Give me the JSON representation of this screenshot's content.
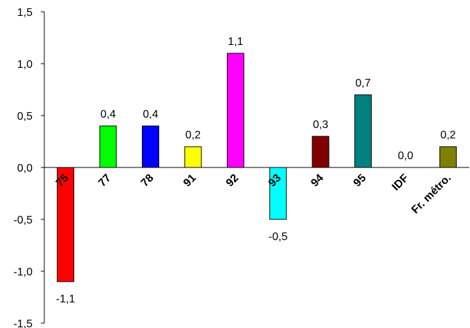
{
  "chart_data": {
    "type": "bar",
    "categories": [
      "75",
      "77",
      "78",
      "91",
      "92",
      "93",
      "94",
      "95",
      "IDF",
      "Fr. métro."
    ],
    "values": [
      -1.1,
      0.4,
      0.4,
      0.2,
      1.1,
      -0.5,
      0.3,
      0.7,
      0.0,
      0.2
    ],
    "value_labels": [
      "-1,1",
      "0,4",
      "0,4",
      "0,2",
      "1,1",
      "-0,5",
      "0,3",
      "0,7",
      "0,0",
      "0,2"
    ],
    "colors": [
      "#ff0000",
      "#00ff00",
      "#0000ff",
      "#ffff00",
      "#ff00ff",
      "#00ffff",
      "#800000",
      "#008080",
      "#ffffff",
      "#808000"
    ],
    "y_ticks": [
      1.5,
      1.0,
      0.5,
      0.0,
      -0.5,
      -1.0,
      -1.5
    ],
    "y_tick_labels": [
      "1,5",
      "1,0",
      "0,5",
      "0,0",
      "-0,5",
      "-1,0",
      "-1,5"
    ],
    "ylim": [
      -1.5,
      1.5
    ],
    "title": "",
    "xlabel": "",
    "ylabel": "",
    "grid": false,
    "legend": "none"
  }
}
